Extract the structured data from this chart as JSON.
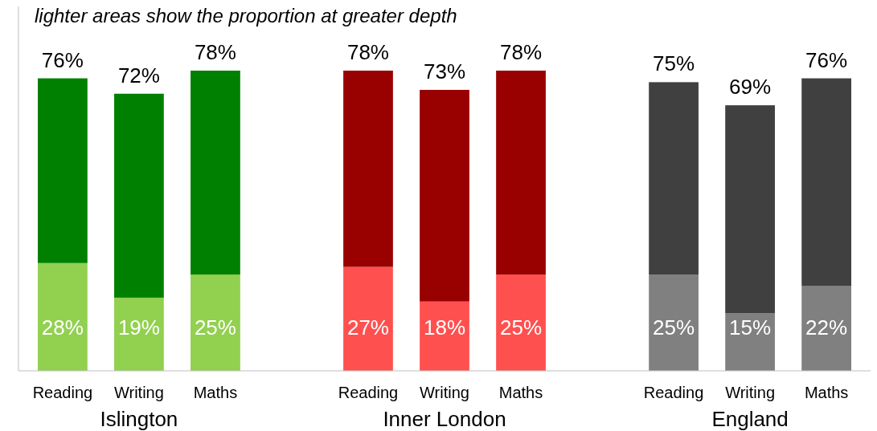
{
  "chart_data": {
    "type": "bar",
    "stacked": true,
    "title": "lighter areas show the proportion at greater depth",
    "categories": [
      "Reading",
      "Writing",
      "Maths",
      null,
      "Reading",
      "Writing",
      "Maths",
      null,
      "Reading",
      "Writing",
      "Maths"
    ],
    "series": [
      {
        "colors": [
          "#92d050",
          "#92d050",
          "#92d050",
          null,
          "#ff5050",
          "#ff5050",
          "#ff5050",
          null,
          "#808080",
          "#808080",
          "#808080"
        ],
        "values": [
          28,
          19,
          25,
          null,
          27,
          18,
          25,
          null,
          25,
          15,
          22
        ],
        "value_labels": [
          "28%",
          "19%",
          "25%",
          null,
          "27%",
          "18%",
          "25%",
          null,
          "25%",
          "15%",
          "22%"
        ]
      },
      {
        "colors": [
          "#008000",
          "#008000",
          "#008000",
          null,
          "#990000",
          "#990000",
          "#990000",
          null,
          "#404040",
          "#404040",
          "#404040"
        ],
        "values": [
          48,
          53,
          53,
          null,
          51,
          55,
          53,
          null,
          50,
          54,
          54
        ]
      }
    ],
    "totals": [
      "76%",
      "72%",
      "78%",
      null,
      "78%",
      "73%",
      "78%",
      null,
      "75%",
      "69%",
      "76%"
    ],
    "annotations": [
      "Islington",
      "Inner London",
      "England"
    ],
    "tick_labels": "x",
    "grid": false
  }
}
